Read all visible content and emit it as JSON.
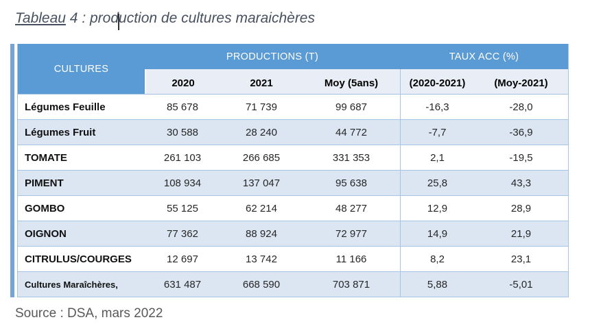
{
  "title": {
    "caption_underlined": "Tableau",
    "caption_rest": " 4 : production de cultures maraichères"
  },
  "source": "Source : DSA, mars 2022",
  "colors": {
    "accent": "#5b9bd5",
    "strip": "#74a4d9",
    "line": "#a3c4e4",
    "subhead": "#e9eef6",
    "zebra": "#dce6f2"
  },
  "table": {
    "header": {
      "cultures": "CULTURES",
      "productions": "PRODUCTIONS (T)",
      "taux": "TAUX ACC (%)"
    },
    "subheader": [
      "2020",
      "2021",
      "Moy (5ans)",
      "(2020-2021)",
      "(Moy-2021)"
    ],
    "rows": [
      {
        "label": "Légumes Feuille",
        "values": [
          "85 678",
          "71 739",
          "99 687",
          "-16,3",
          "-28,0"
        ]
      },
      {
        "label": "Légumes Fruit",
        "values": [
          "30 588",
          "28 240",
          "44 772",
          "-7,7",
          "-36,9"
        ]
      },
      {
        "label": "TOMATE",
        "values": [
          "261 103",
          "266 685",
          "331 353",
          "2,1",
          "-19,5"
        ]
      },
      {
        "label": "PIMENT",
        "values": [
          "108 934",
          "137 047",
          "95 638",
          "25,8",
          "43,3"
        ]
      },
      {
        "label": "GOMBO",
        "values": [
          "55 125",
          "62 214",
          "48 277",
          "12,9",
          "28,9"
        ]
      },
      {
        "label": "OIGNON",
        "values": [
          "77 362",
          "88 924",
          "72 977",
          "14,9",
          "21,9"
        ]
      },
      {
        "label": "CITRULUS/COURGES",
        "values": [
          "12 697",
          "13 742",
          "11 166",
          "8,2",
          "23,1"
        ]
      },
      {
        "label": "Cultures Maraîchères,",
        "values": [
          "631 487",
          "668 590",
          "703 871",
          "5,88",
          "-5,01"
        ]
      }
    ]
  }
}
